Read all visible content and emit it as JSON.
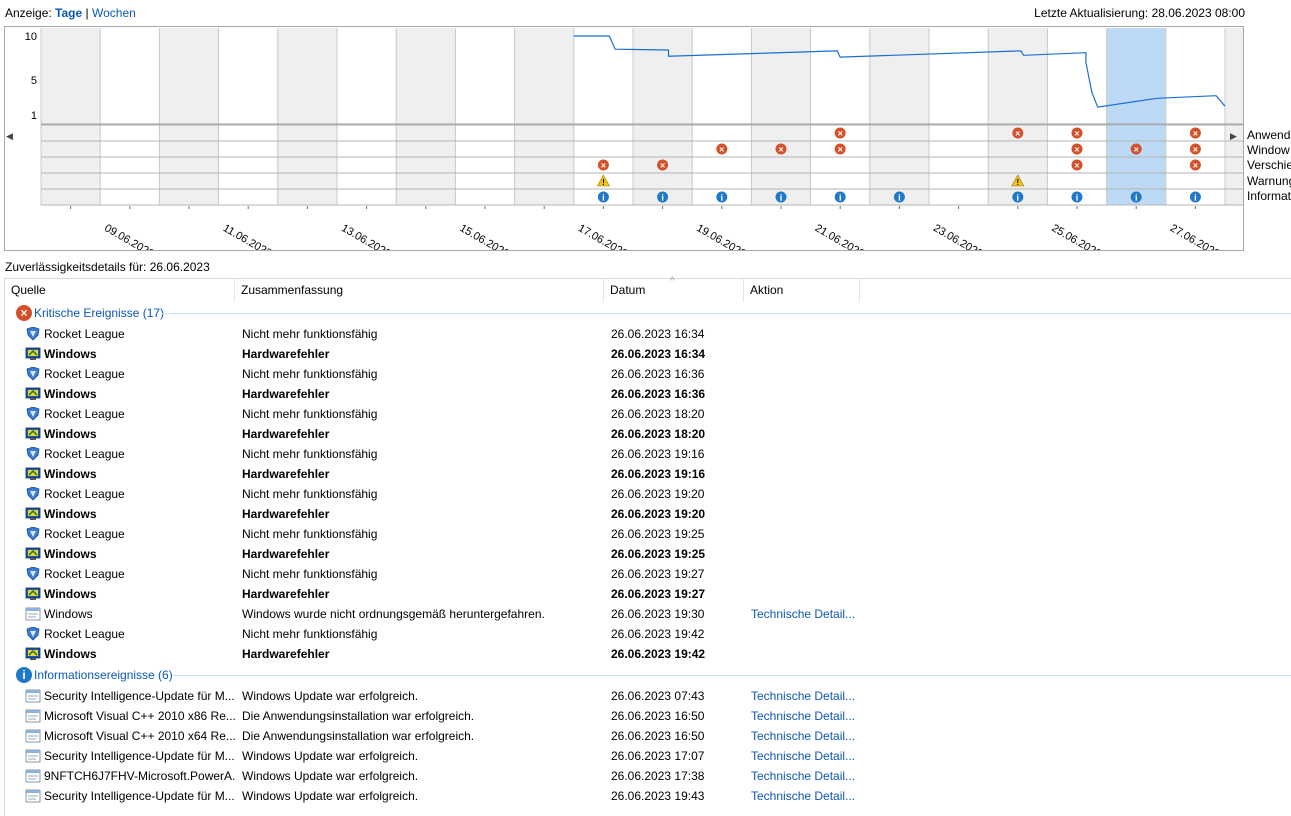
{
  "header": {
    "view_label": "Anzeige:",
    "view_days": "Tage",
    "view_separator": "|",
    "view_weeks": "Wochen",
    "last_update": "Letzte Aktualisierung: 28.06.2023 08:00"
  },
  "chart_data": {
    "type": "line",
    "y_ticks": [
      "10",
      "5",
      "1"
    ],
    "ylim": [
      1,
      10
    ],
    "x_days": [
      "08.06",
      "09.06",
      "10.06",
      "11.06",
      "12.06",
      "13.06",
      "14.06",
      "15.06",
      "16.06",
      "17.06",
      "18.06",
      "19.06",
      "20.06",
      "21.06",
      "22.06",
      "23.06",
      "24.06",
      "25.06",
      "26.06",
      "27.06",
      "28.06"
    ],
    "x_tick_labels": [
      "09.06.2023",
      "11.06.2023",
      "13.06.2023",
      "15.06.2023",
      "17.06.2023",
      "19.06.2023",
      "21.06.2023",
      "23.06.2023",
      "25.06.2023",
      "27.06.2023"
    ],
    "selected_day": "26.06",
    "stability_series": [
      {
        "day": 9.0,
        "value": 10.0
      },
      {
        "day": 9.6,
        "value": 10.0
      },
      {
        "day": 9.7,
        "value": 8.5
      },
      {
        "day": 10.6,
        "value": 8.4
      },
      {
        "day": 10.6,
        "value": 7.7
      },
      {
        "day": 13.45,
        "value": 8.3
      },
      {
        "day": 13.5,
        "value": 7.6
      },
      {
        "day": 16.55,
        "value": 8.3
      },
      {
        "day": 16.6,
        "value": 7.8
      },
      {
        "day": 17.65,
        "value": 8.1
      },
      {
        "day": 17.65,
        "value": 7.0
      },
      {
        "day": 17.75,
        "value": 3.6
      },
      {
        "day": 17.85,
        "value": 1.9
      },
      {
        "day": 18.85,
        "value": 2.9
      },
      {
        "day": 19.85,
        "value": 3.2
      },
      {
        "day": 20.0,
        "value": 2.0
      }
    ],
    "event_rows": [
      "Anwendungsfehler",
      "Windows-Fehler",
      "Verschiedene Fehler",
      "Warnungen",
      "Informationsereignisse"
    ],
    "events": [
      {
        "row": 0,
        "days": [
          13,
          16,
          17,
          19
        ],
        "type": "error"
      },
      {
        "row": 1,
        "days": [
          11,
          12,
          13,
          17,
          18,
          19
        ],
        "type": "error"
      },
      {
        "row": 2,
        "days": [
          9,
          10,
          17,
          19
        ],
        "type": "error"
      },
      {
        "row": 3,
        "days": [
          9,
          16
        ],
        "type": "warning"
      },
      {
        "row": 4,
        "days": [
          9,
          10,
          11,
          12,
          13,
          14,
          16,
          17,
          18,
          19
        ],
        "type": "info"
      }
    ]
  },
  "row_labels": [
    "Anwend",
    "Window",
    "Verschie",
    "Warnung",
    "Informat"
  ],
  "details": {
    "title": "Zuverlässigkeitsdetails für: 26.06.2023",
    "columns": [
      "Quelle",
      "Zusammenfassung",
      "Datum",
      "Aktion"
    ],
    "groups": [
      {
        "label": "Kritische Ereignisse (17)",
        "icon": "error-icon",
        "rows": [
          {
            "icon": "shield",
            "source": "Rocket League",
            "summary": "Nicht mehr funktionsfähig",
            "date": "26.06.2023 16:34",
            "action": "",
            "bold": false
          },
          {
            "icon": "winhw",
            "source": "Windows",
            "summary": "Hardwarefehler",
            "date": "26.06.2023 16:34",
            "action": "",
            "bold": true
          },
          {
            "icon": "shield",
            "source": "Rocket League",
            "summary": "Nicht mehr funktionsfähig",
            "date": "26.06.2023 16:36",
            "action": "",
            "bold": false
          },
          {
            "icon": "winhw",
            "source": "Windows",
            "summary": "Hardwarefehler",
            "date": "26.06.2023 16:36",
            "action": "",
            "bold": true
          },
          {
            "icon": "shield",
            "source": "Rocket League",
            "summary": "Nicht mehr funktionsfähig",
            "date": "26.06.2023 18:20",
            "action": "",
            "bold": false
          },
          {
            "icon": "winhw",
            "source": "Windows",
            "summary": "Hardwarefehler",
            "date": "26.06.2023 18:20",
            "action": "",
            "bold": true
          },
          {
            "icon": "shield",
            "source": "Rocket League",
            "summary": "Nicht mehr funktionsfähig",
            "date": "26.06.2023 19:16",
            "action": "",
            "bold": false
          },
          {
            "icon": "winhw",
            "source": "Windows",
            "summary": "Hardwarefehler",
            "date": "26.06.2023 19:16",
            "action": "",
            "bold": true
          },
          {
            "icon": "shield",
            "source": "Rocket League",
            "summary": "Nicht mehr funktionsfähig",
            "date": "26.06.2023 19:20",
            "action": "",
            "bold": false
          },
          {
            "icon": "winhw",
            "source": "Windows",
            "summary": "Hardwarefehler",
            "date": "26.06.2023 19:20",
            "action": "",
            "bold": true
          },
          {
            "icon": "shield",
            "source": "Rocket League",
            "summary": "Nicht mehr funktionsfähig",
            "date": "26.06.2023 19:25",
            "action": "",
            "bold": false
          },
          {
            "icon": "winhw",
            "source": "Windows",
            "summary": "Hardwarefehler",
            "date": "26.06.2023 19:25",
            "action": "",
            "bold": true
          },
          {
            "icon": "shield",
            "source": "Rocket League",
            "summary": "Nicht mehr funktionsfähig",
            "date": "26.06.2023 19:27",
            "action": "",
            "bold": false
          },
          {
            "icon": "winhw",
            "source": "Windows",
            "summary": "Hardwarefehler",
            "date": "26.06.2023 19:27",
            "action": "",
            "bold": true
          },
          {
            "icon": "window",
            "source": "Windows",
            "summary": "Windows wurde nicht ordnungsgemäß heruntergefahren.",
            "date": "26.06.2023 19:30",
            "action": "Technische Detail...",
            "bold": false
          },
          {
            "icon": "shield",
            "source": "Rocket League",
            "summary": "Nicht mehr funktionsfähig",
            "date": "26.06.2023 19:42",
            "action": "",
            "bold": false
          },
          {
            "icon": "winhw",
            "source": "Windows",
            "summary": "Hardwarefehler",
            "date": "26.06.2023 19:42",
            "action": "",
            "bold": true
          }
        ]
      },
      {
        "label": "Informationsereignisse (6)",
        "icon": "info-icon",
        "rows": [
          {
            "icon": "window",
            "source": "Security Intelligence-Update für M...",
            "summary": "Windows Update war erfolgreich.",
            "date": "26.06.2023 07:43",
            "action": "Technische Detail...",
            "bold": false
          },
          {
            "icon": "window",
            "source": "Microsoft Visual C++ 2010  x86 Re...",
            "summary": "Die Anwendungsinstallation war erfolgreich.",
            "date": "26.06.2023 16:50",
            "action": "Technische Detail...",
            "bold": false
          },
          {
            "icon": "window",
            "source": "Microsoft Visual C++ 2010  x64 Re...",
            "summary": "Die Anwendungsinstallation war erfolgreich.",
            "date": "26.06.2023 16:50",
            "action": "Technische Detail...",
            "bold": false
          },
          {
            "icon": "window",
            "source": "Security Intelligence-Update für M...",
            "summary": "Windows Update war erfolgreich.",
            "date": "26.06.2023 17:07",
            "action": "Technische Detail...",
            "bold": false
          },
          {
            "icon": "window",
            "source": "9NFTCH6J7FHV-Microsoft.PowerA...",
            "summary": "Windows Update war erfolgreich.",
            "date": "26.06.2023 17:38",
            "action": "Technische Detail...",
            "bold": false
          },
          {
            "icon": "window",
            "source": "Security Intelligence-Update für M...",
            "summary": "Windows Update war erfolgreich.",
            "date": "26.06.2023 19:43",
            "action": "Technische Detail...",
            "bold": false
          }
        ]
      }
    ]
  },
  "colors": {
    "link": "#0b57b7",
    "line": "#1a6fd1",
    "selected": "#bcdaf5",
    "error": "#d4502a",
    "warning": "#f0c419",
    "info": "#1f78c8"
  }
}
